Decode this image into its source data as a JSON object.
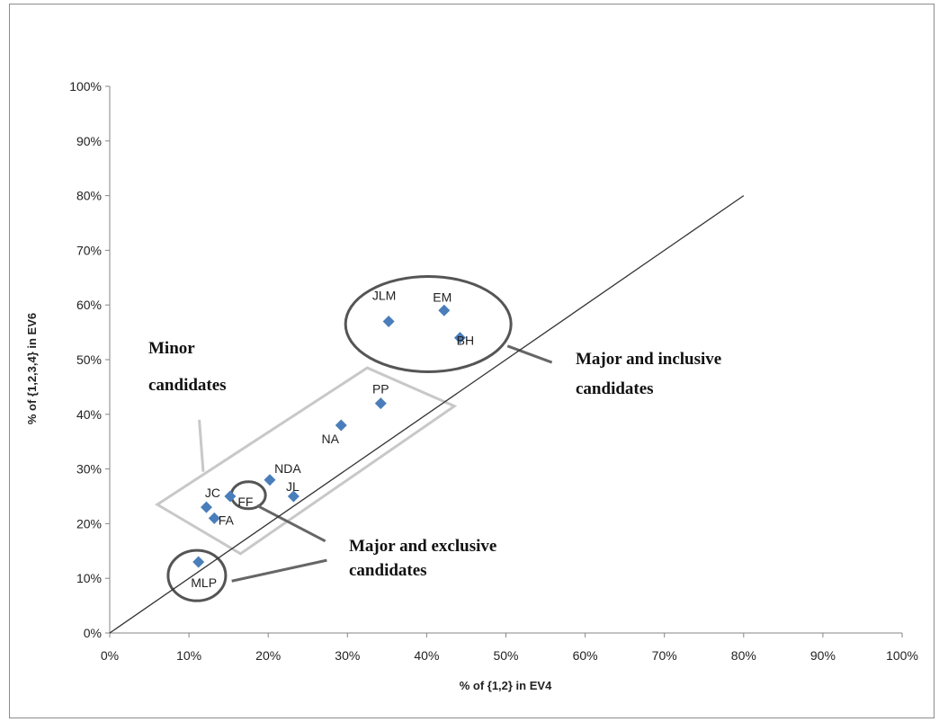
{
  "chart_data": {
    "type": "scatter",
    "title": "",
    "xlabel": "% of {1,2} in EV4",
    "ylabel": "% of {1,2,3,4} in EV6",
    "xlim": [
      0,
      100
    ],
    "ylim": [
      0,
      100
    ],
    "x_ticks": [
      "0%",
      "10%",
      "20%",
      "30%",
      "40%",
      "50%",
      "60%",
      "70%",
      "80%",
      "90%",
      "100%"
    ],
    "y_ticks": [
      "0%",
      "10%",
      "20%",
      "30%",
      "40%",
      "50%",
      "60%",
      "70%",
      "80%",
      "90%",
      "100%"
    ],
    "grid": false,
    "marker_color": "#4a7ebb",
    "points": [
      {
        "label": "JLM",
        "x": 35.2,
        "y": 57
      },
      {
        "label": "EM",
        "x": 42.2,
        "y": 59
      },
      {
        "label": "BH",
        "x": 44.2,
        "y": 54
      },
      {
        "label": "PP",
        "x": 34.2,
        "y": 42
      },
      {
        "label": "NA",
        "x": 29.2,
        "y": 38
      },
      {
        "label": "NDA",
        "x": 20.2,
        "y": 28
      },
      {
        "label": "JL",
        "x": 23.2,
        "y": 25
      },
      {
        "label": "FF",
        "x": 15.2,
        "y": 25
      },
      {
        "label": "JC",
        "x": 12.2,
        "y": 23
      },
      {
        "label": "FA",
        "x": 13.2,
        "y": 21
      },
      {
        "label": "MLP",
        "x": 11.2,
        "y": 13
      }
    ],
    "reference_line": {
      "x": [
        0,
        80
      ],
      "y": [
        0,
        80
      ],
      "color": "#333333"
    },
    "annotations": {
      "minor": "Minor\ncandidates",
      "major_inclusive": "Major and inclusive\ncandidates",
      "major_exclusive": "Major and exclusive\ncandidates"
    }
  }
}
